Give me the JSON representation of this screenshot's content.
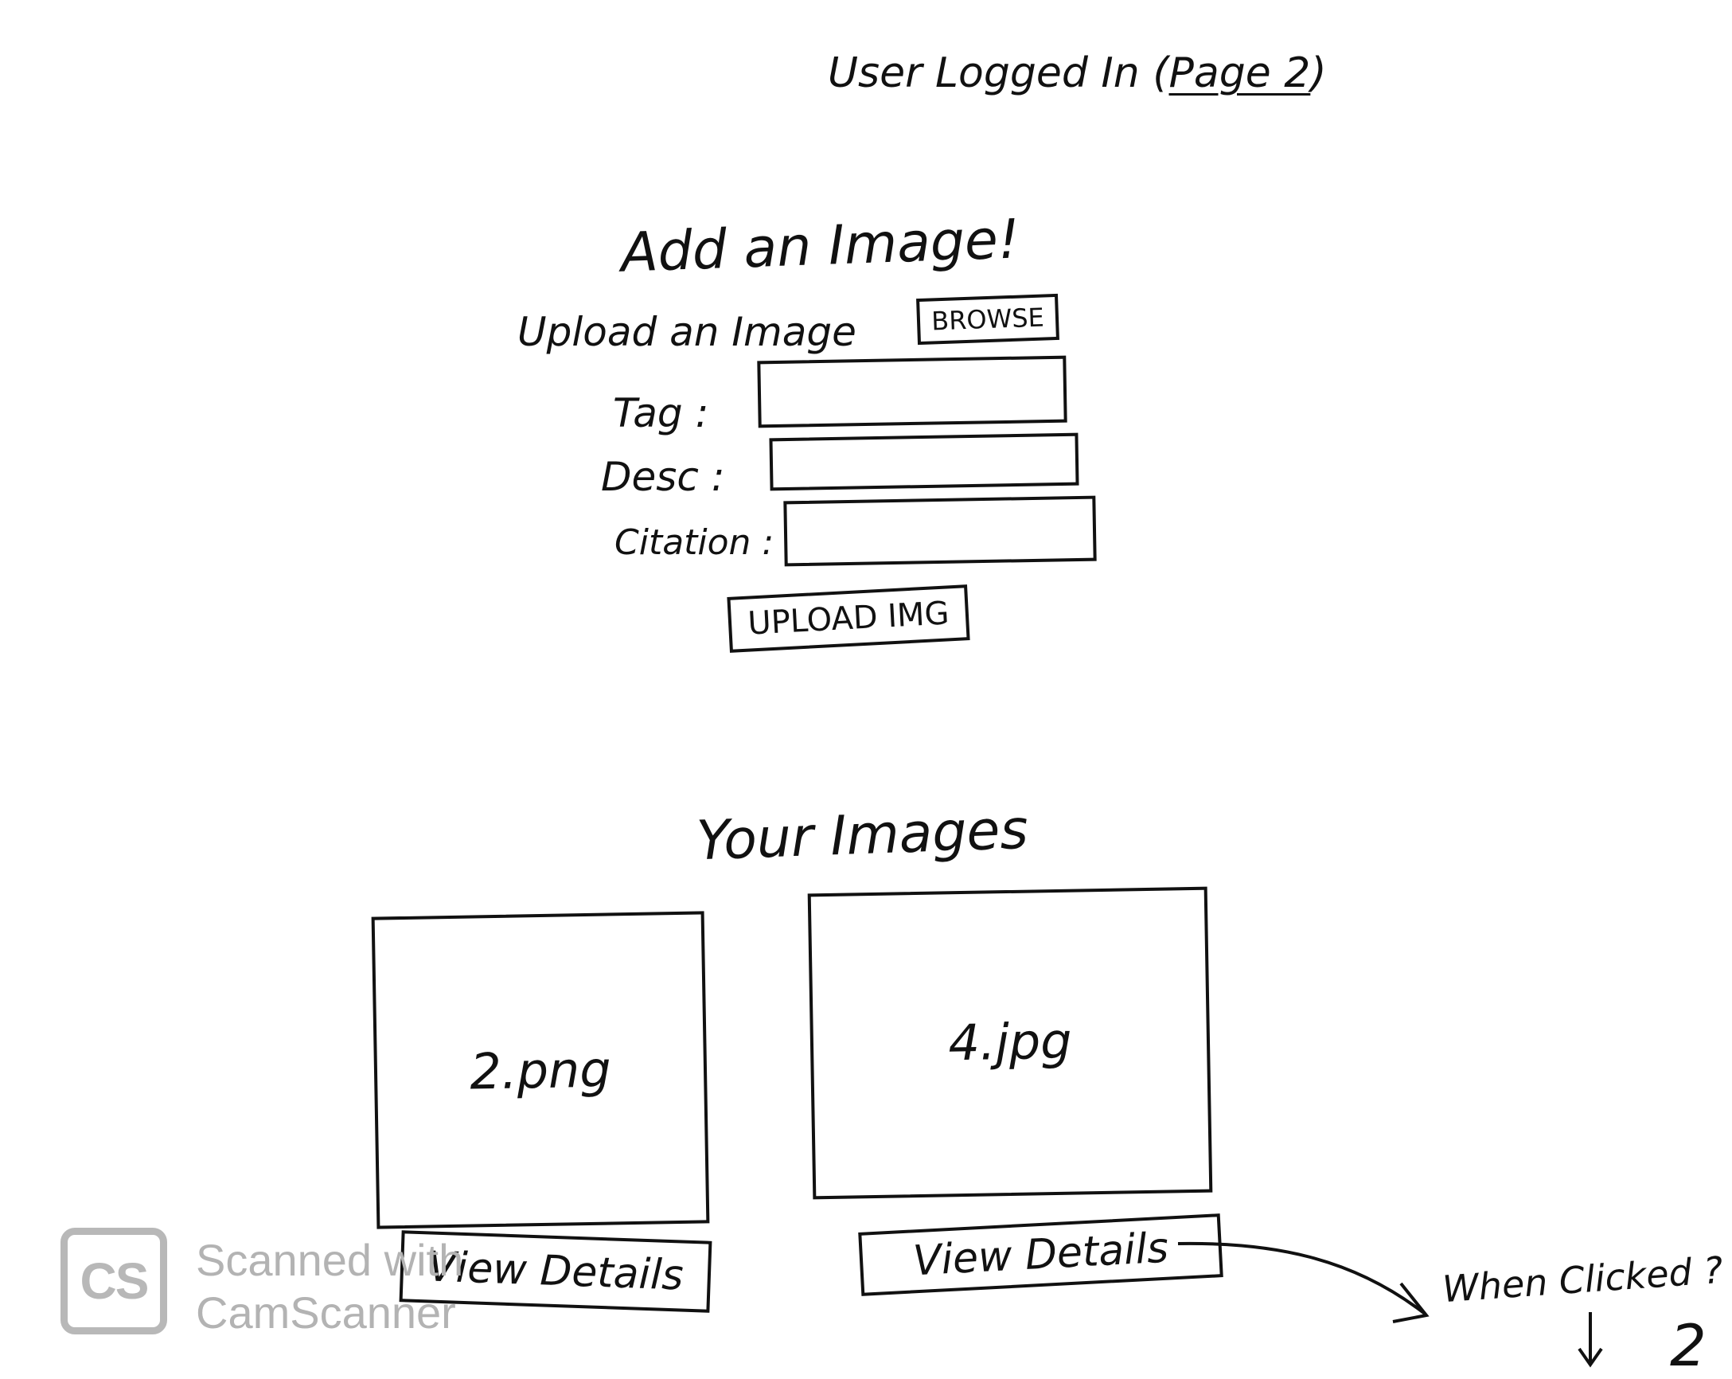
{
  "header": {
    "title_prefix": "User Logged In (",
    "title_page": "Page 2",
    "title_suffix": ")"
  },
  "add_image": {
    "heading": "Add an Image!",
    "upload_label": "Upload an Image",
    "browse_button": "BROWSE",
    "fields": [
      {
        "label": "Tag :",
        "value": ""
      },
      {
        "label": "Desc :",
        "value": ""
      },
      {
        "label": "Citation :",
        "value": ""
      }
    ],
    "upload_button": "UPLOAD IMG"
  },
  "your_images": {
    "heading": "Your Images",
    "cards": [
      {
        "filename": "2.png",
        "button": "View Details"
      },
      {
        "filename": "4.jpg",
        "button": "View Details"
      }
    ]
  },
  "annotation": {
    "note": "When Clicked ?",
    "target": "2"
  },
  "watermark": {
    "logo": "CS",
    "line1": "Scanned with",
    "line2": "CamScanner"
  }
}
